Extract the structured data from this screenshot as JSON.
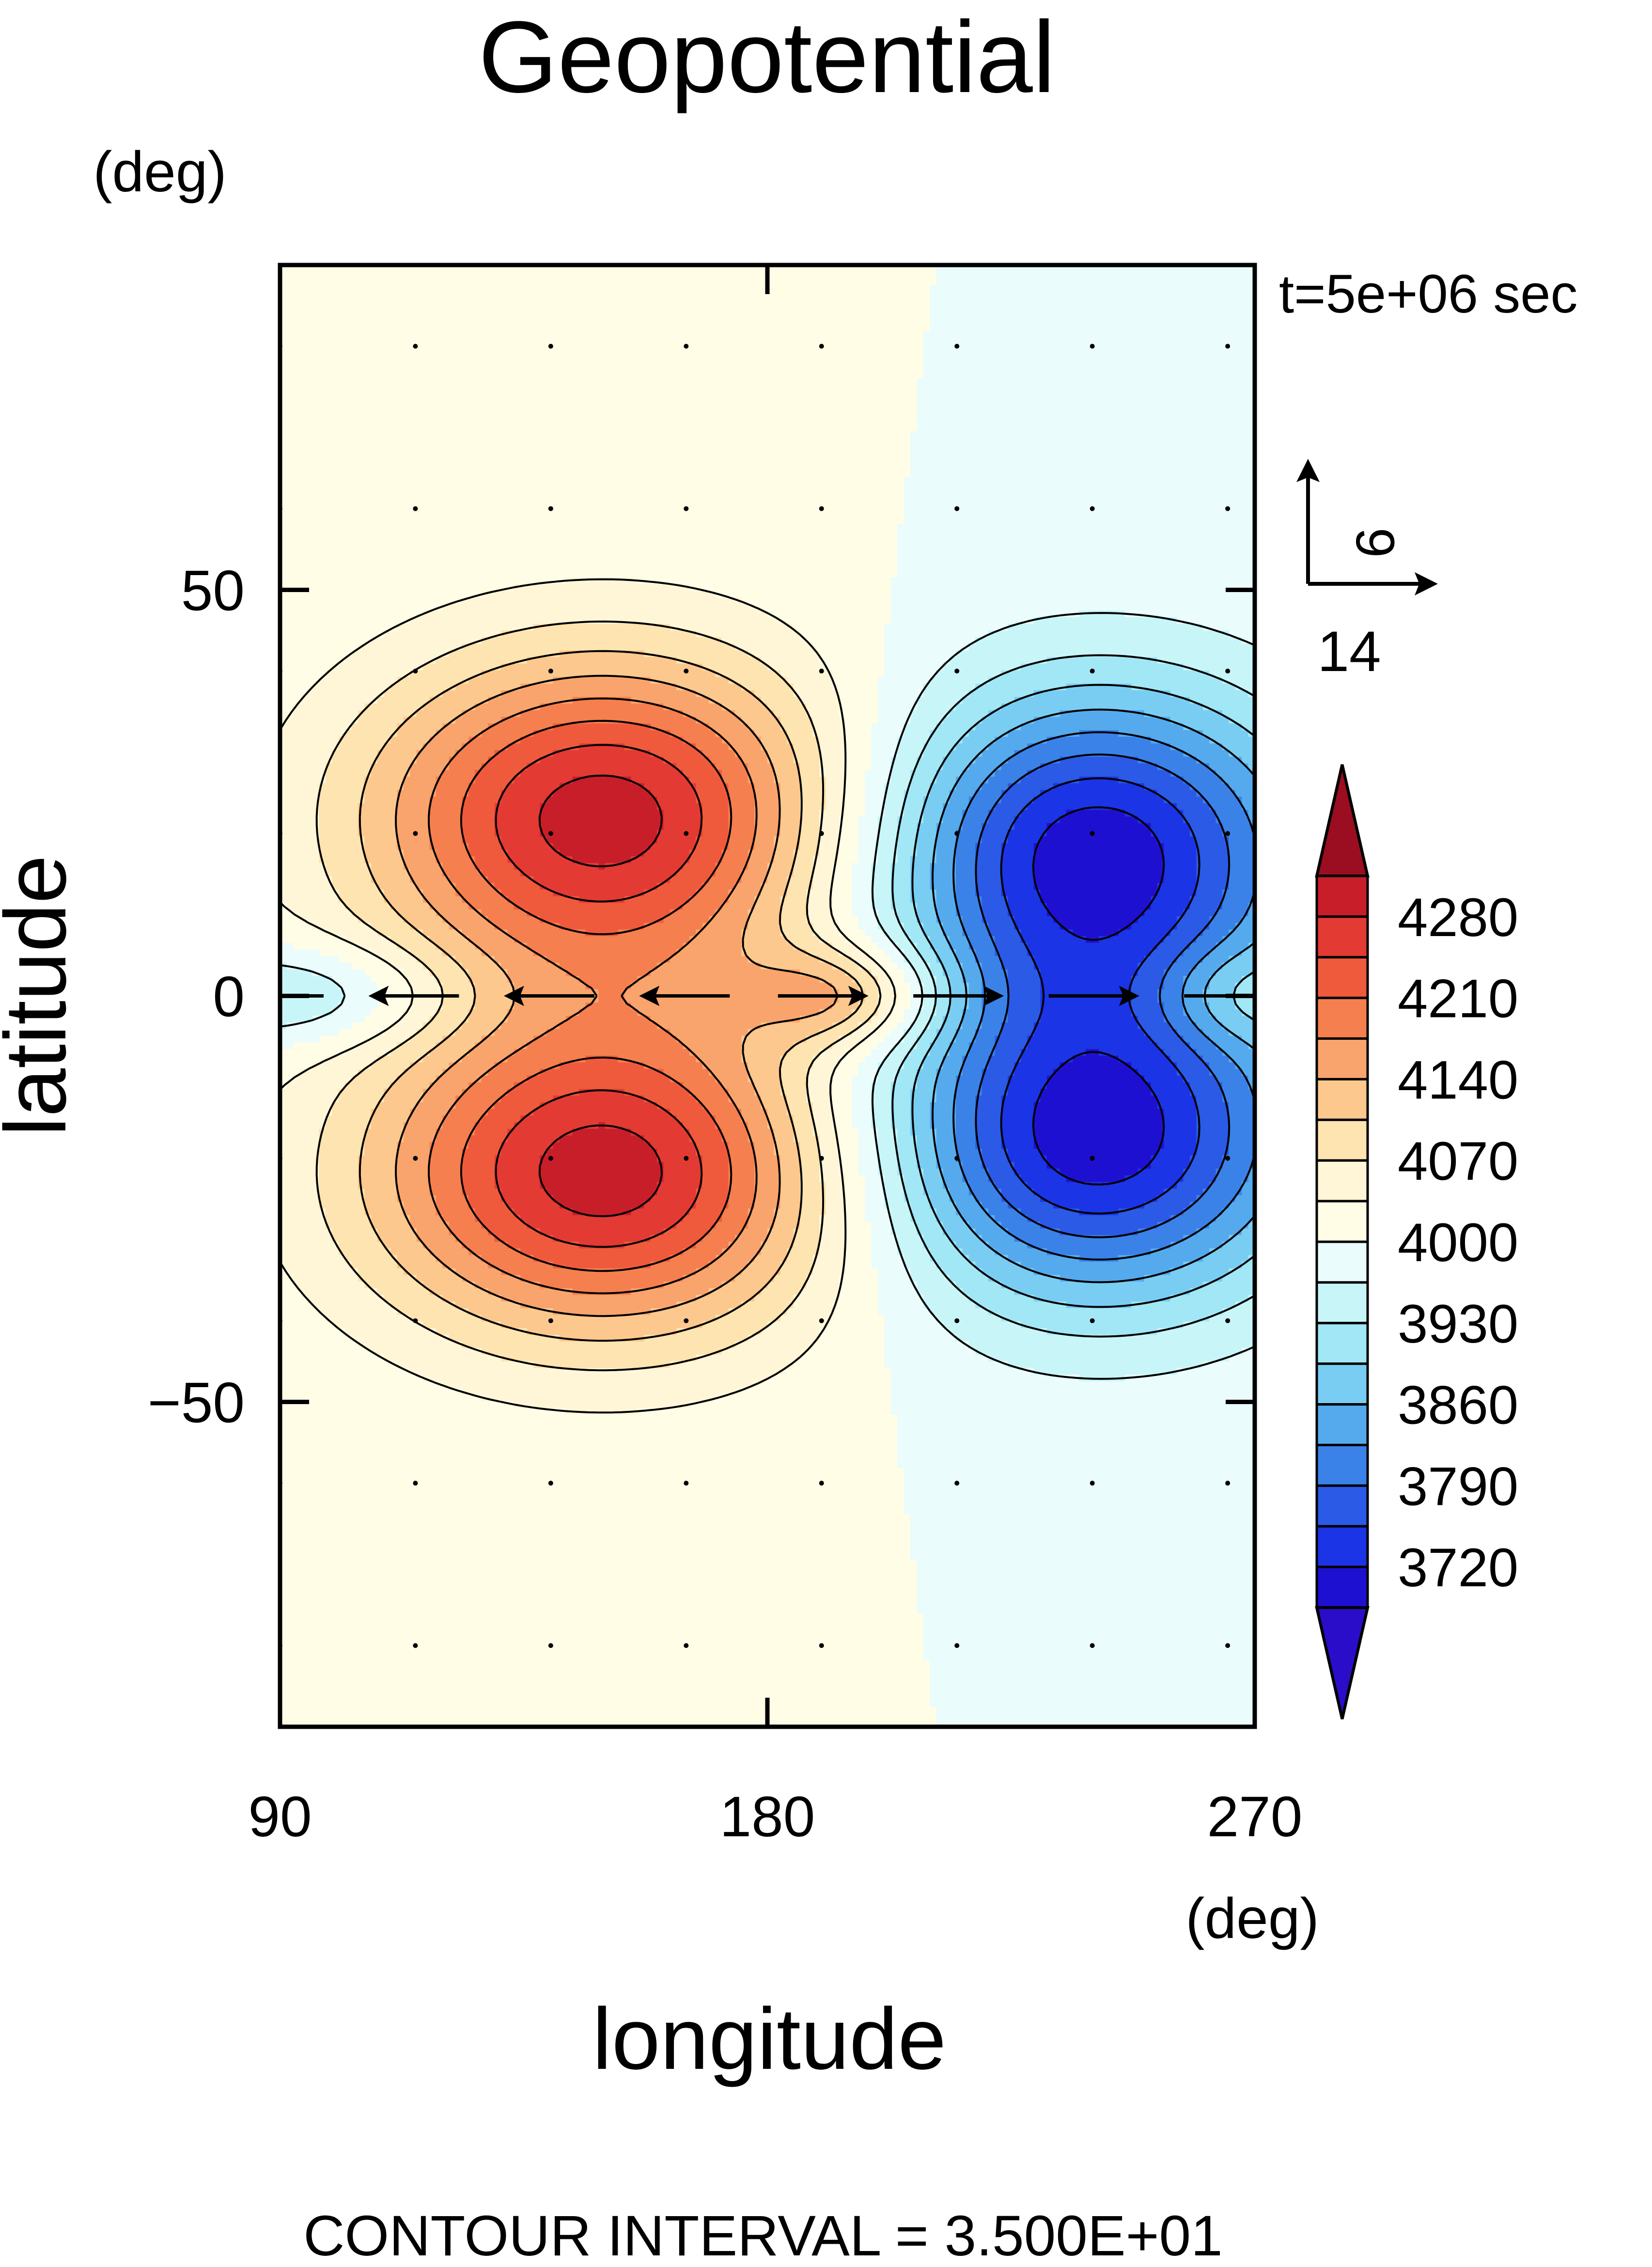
{
  "chart_data": {
    "type": "contour",
    "title": "Geopotential",
    "xlabel": "longitude",
    "ylabel": "latitude",
    "x_units": "(deg)",
    "y_units": "(deg)",
    "xlim": [
      90,
      270
    ],
    "ylim": [
      -90,
      90
    ],
    "x_ticks": [
      90,
      180,
      270
    ],
    "y_ticks": [
      50,
      0,
      -50
    ],
    "y_tick_labels": [
      "50",
      "0",
      "−50"
    ],
    "time_label": "t=5e+06 sec",
    "contour_interval_label": "CONTOUR INTERVAL = 3.500E+01",
    "contour_interval": 35,
    "base_value": 4000,
    "field": {
      "highs": [
        {
          "lon": 150,
          "lat": 22,
          "value": 4300
        },
        {
          "lon": 150,
          "lat": -22,
          "value": 4300
        }
      ],
      "lows": [
        {
          "lon": 240,
          "lat": 18,
          "value": 3700
        },
        {
          "lon": 240,
          "lat": -18,
          "value": 3700
        }
      ]
    },
    "colorbar": {
      "labels": [
        "4280",
        "4210",
        "4140",
        "4070",
        "4000",
        "3930",
        "3860",
        "3790",
        "3720"
      ],
      "levels": [
        4315,
        4280,
        4245,
        4210,
        4175,
        4140,
        4105,
        4070,
        4035,
        4000,
        3965,
        3930,
        3895,
        3860,
        3825,
        3790,
        3755,
        3720,
        3685
      ],
      "colors": [
        "#9b0d20",
        "#c81e2a",
        "#e33a33",
        "#f05a3c",
        "#f57f4f",
        "#f9a46c",
        "#fcc88e",
        "#fde4b0",
        "#fff6d8",
        "#fffde6",
        "#eafcfc",
        "#c8f5f8",
        "#a2e7f5",
        "#7acdf2",
        "#55aaee",
        "#3a82e8",
        "#2a5ae6",
        "#1a34e6",
        "#1e10d0",
        "#2a0dc8"
      ]
    },
    "vector_reference": {
      "x_label": "14",
      "y_label": "9"
    }
  }
}
